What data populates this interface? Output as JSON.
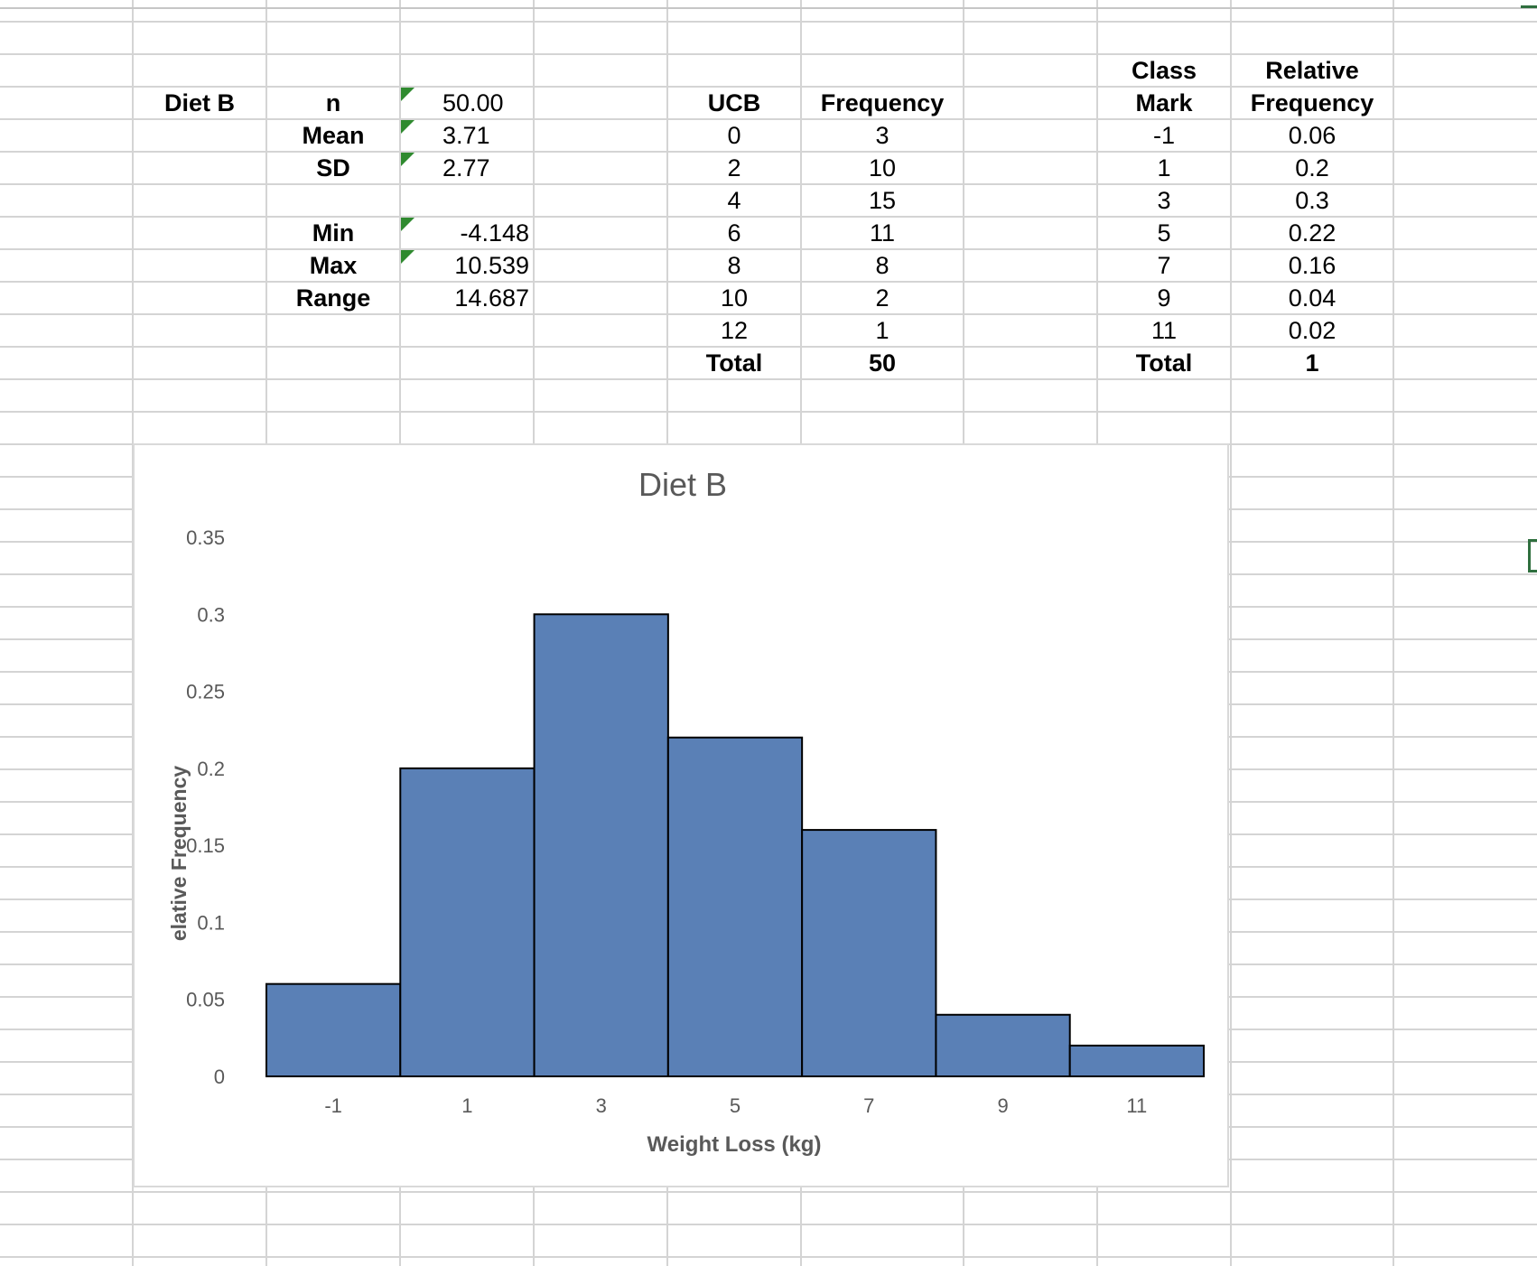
{
  "stats": {
    "diet_label": "Diet B",
    "rows": [
      {
        "label": "n",
        "value": "50.00",
        "flag": true
      },
      {
        "label": "Mean",
        "value": "3.71",
        "flag": true
      },
      {
        "label": "SD",
        "value": "2.77",
        "flag": true
      },
      {
        "label": "Min",
        "value": "-4.148",
        "flag": true
      },
      {
        "label": "Max",
        "value": "10.539",
        "flag": true
      },
      {
        "label": "Range",
        "value": "14.687",
        "flag": false
      }
    ]
  },
  "freq_table": {
    "headers": {
      "ucb": "UCB",
      "frequency": "Frequency"
    },
    "rows": [
      {
        "ucb": "0",
        "frequency": "3"
      },
      {
        "ucb": "2",
        "frequency": "10"
      },
      {
        "ucb": "4",
        "frequency": "15"
      },
      {
        "ucb": "6",
        "frequency": "11"
      },
      {
        "ucb": "8",
        "frequency": "8"
      },
      {
        "ucb": "10",
        "frequency": "2"
      },
      {
        "ucb": "12",
        "frequency": "1"
      }
    ],
    "total_label": "Total",
    "total_value": "50"
  },
  "rel_table": {
    "headers": {
      "class_mark_line1": "Class",
      "class_mark_line2": "Mark",
      "rel_line1": "Relative",
      "rel_line2": "Frequency"
    },
    "rows": [
      {
        "mark": "-1",
        "rel": "0.06"
      },
      {
        "mark": "1",
        "rel": "0.2"
      },
      {
        "mark": "3",
        "rel": "0.3"
      },
      {
        "mark": "5",
        "rel": "0.22"
      },
      {
        "mark": "7",
        "rel": "0.16"
      },
      {
        "mark": "9",
        "rel": "0.04"
      },
      {
        "mark": "11",
        "rel": "0.02"
      }
    ],
    "total_label": "Total",
    "total_value": "1"
  },
  "colors": {
    "bar_fill": "#5a80b6",
    "bar_stroke": "#000000",
    "gridline": "#d4d4d4",
    "flag_green": "#2f8a2f",
    "selection_green": "#2f6f3e"
  },
  "chart_data": {
    "type": "bar",
    "title": "Diet B",
    "xlabel": "Weight Loss (kg)",
    "ylabel": "elative Frequency",
    "categories": [
      "-1",
      "1",
      "3",
      "5",
      "7",
      "9",
      "11"
    ],
    "values": [
      0.06,
      0.2,
      0.3,
      0.22,
      0.16,
      0.04,
      0.02
    ],
    "y_ticks": [
      "0",
      "0.05",
      "0.1",
      "0.15",
      "0.2",
      "0.25",
      "0.3",
      "0.35"
    ],
    "ylim": [
      0,
      0.35
    ],
    "grid": false,
    "legend": "none"
  }
}
